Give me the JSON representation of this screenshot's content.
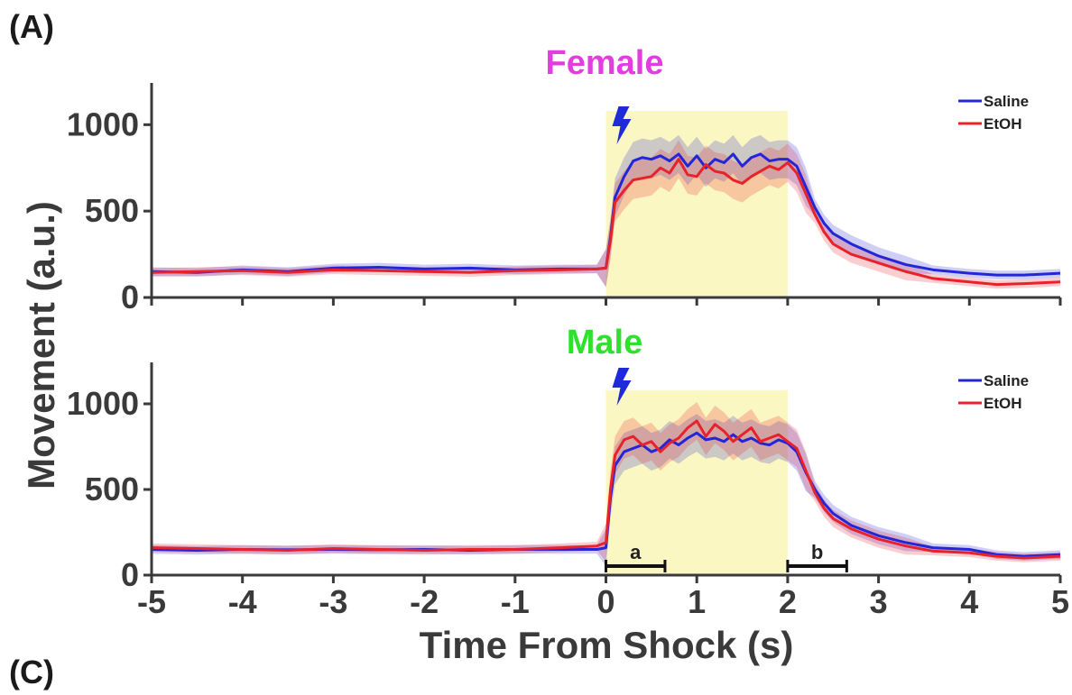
{
  "figure": {
    "panel_letter_top": "(A)",
    "panel_letter_bottom": "(C)"
  },
  "colors": {
    "saline": "#2326d6",
    "etoh": "#e8222a",
    "shock_window": "#fbf7c2",
    "female_title": "#e23ddf",
    "male_title": "#2fe02f",
    "bolt": "#1f2ad8",
    "axis": "#3a3a3a"
  },
  "icons": {
    "shock": "lightning-bolt-icon"
  },
  "chart_data": [
    {
      "type": "line",
      "title": "Female",
      "xlabel": "Time From Shock (s)",
      "ylabel": "Movement (a.u.)",
      "xlim": [
        -5,
        5
      ],
      "ylim": [
        0,
        1200
      ],
      "yticks": [
        "0",
        "500",
        "1000"
      ],
      "shaded_region": [
        0,
        2
      ],
      "legend_position": "top-right",
      "legend": [
        "Saline",
        "EtOH"
      ],
      "x": [
        -5,
        -4.5,
        -4,
        -3.5,
        -3,
        -2.5,
        -2,
        -1.5,
        -1,
        -0.5,
        -0.1,
        0,
        0.05,
        0.1,
        0.2,
        0.3,
        0.4,
        0.5,
        0.6,
        0.7,
        0.8,
        0.9,
        1.0,
        1.1,
        1.2,
        1.3,
        1.4,
        1.5,
        1.6,
        1.7,
        1.8,
        1.9,
        2.0,
        2.1,
        2.2,
        2.3,
        2.4,
        2.5,
        2.7,
        3.0,
        3.3,
        3.6,
        4.0,
        4.3,
        4.6,
        5.0
      ],
      "series": [
        {
          "name": "Saline",
          "values": [
            150,
            145,
            160,
            150,
            170,
            175,
            165,
            170,
            160,
            165,
            165,
            170,
            350,
            580,
            700,
            790,
            810,
            800,
            820,
            790,
            830,
            760,
            820,
            750,
            800,
            780,
            830,
            760,
            810,
            830,
            790,
            800,
            800,
            760,
            640,
            520,
            430,
            370,
            310,
            240,
            190,
            160,
            140,
            130,
            130,
            140
          ]
        },
        {
          "name": "EtOH",
          "values": [
            145,
            150,
            155,
            145,
            160,
            155,
            150,
            145,
            155,
            160,
            165,
            170,
            330,
            550,
            620,
            680,
            690,
            700,
            750,
            720,
            800,
            710,
            700,
            770,
            730,
            720,
            680,
            660,
            700,
            730,
            760,
            740,
            780,
            720,
            600,
            480,
            380,
            310,
            250,
            200,
            150,
            110,
            90,
            75,
            80,
            90
          ]
        }
      ]
    },
    {
      "type": "line",
      "title": "Male",
      "xlabel": "Time From Shock (s)",
      "ylabel": "Movement (a.u.)",
      "xlim": [
        -5,
        5
      ],
      "ylim": [
        0,
        1200
      ],
      "xticks": [
        "-5",
        "-4",
        "-3",
        "-2",
        "-1",
        "0",
        "1",
        "2",
        "3",
        "4",
        "5"
      ],
      "yticks": [
        "0",
        "500",
        "1000"
      ],
      "shaded_region": [
        0,
        2
      ],
      "legend_position": "top-right",
      "legend": [
        "Saline",
        "EtOH"
      ],
      "analysis_windows": [
        {
          "label": "a",
          "range": [
            0,
            0.65
          ]
        },
        {
          "label": "b",
          "range": [
            2,
            2.65
          ]
        }
      ],
      "x": [
        -5,
        -4.5,
        -4,
        -3.5,
        -3,
        -2.5,
        -2,
        -1.5,
        -1,
        -0.5,
        -0.1,
        0,
        0.05,
        0.1,
        0.2,
        0.3,
        0.4,
        0.5,
        0.6,
        0.7,
        0.8,
        0.9,
        1.0,
        1.1,
        1.2,
        1.3,
        1.4,
        1.5,
        1.6,
        1.7,
        1.8,
        1.9,
        2.0,
        2.1,
        2.2,
        2.3,
        2.4,
        2.5,
        2.7,
        3.0,
        3.3,
        3.6,
        4.0,
        4.3,
        4.6,
        5.0
      ],
      "series": [
        {
          "name": "Saline",
          "values": [
            150,
            145,
            150,
            148,
            150,
            148,
            150,
            145,
            150,
            150,
            150,
            160,
            450,
            640,
            720,
            740,
            760,
            720,
            740,
            790,
            760,
            800,
            830,
            790,
            800,
            780,
            820,
            780,
            800,
            770,
            760,
            790,
            770,
            720,
            600,
            500,
            420,
            360,
            290,
            230,
            190,
            160,
            150,
            120,
            110,
            120
          ]
        },
        {
          "name": "EtOH",
          "values": [
            160,
            155,
            150,
            145,
            155,
            150,
            145,
            150,
            150,
            160,
            170,
            190,
            500,
            700,
            790,
            810,
            760,
            780,
            720,
            770,
            800,
            860,
            900,
            810,
            880,
            840,
            780,
            820,
            860,
            780,
            800,
            820,
            780,
            740,
            610,
            480,
            390,
            330,
            270,
            210,
            170,
            140,
            130,
            110,
            100,
            110
          ]
        }
      ]
    }
  ]
}
